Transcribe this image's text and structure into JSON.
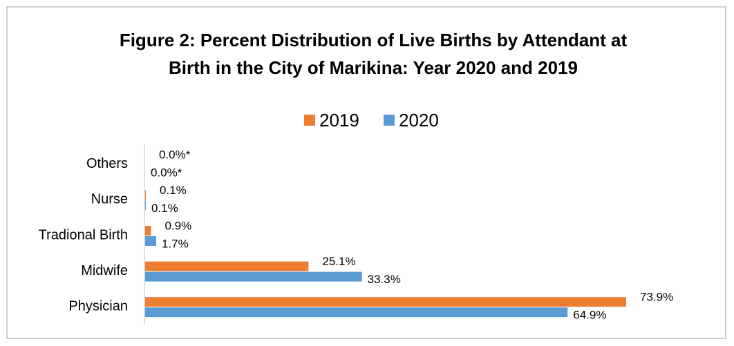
{
  "chart_data": {
    "type": "bar",
    "orientation": "horizontal",
    "title": [
      "Figure 2: Percent Distribution of Live Births by Attendant at",
      "Birth in the City of Marikina: Year 2020 and 2019"
    ],
    "categories": [
      "Others",
      "Nurse",
      "Tradional Birth",
      "Midwife",
      "Physician"
    ],
    "series": [
      {
        "name": "2019",
        "color": "#ed7d31",
        "values": [
          0.0,
          0.1,
          0.9,
          25.1,
          73.9
        ],
        "value_labels": [
          "0.0%*",
          "0.1%",
          "0.9%",
          "25.1%",
          "73.9%"
        ]
      },
      {
        "name": "2020",
        "color": "#5b9bd5",
        "values": [
          0.0,
          0.1,
          1.7,
          33.3,
          64.9
        ],
        "value_labels": [
          "0.0%*",
          "0.1%",
          "1.7%",
          "33.3%",
          "64.9%"
        ]
      }
    ],
    "legend": "top"
  }
}
